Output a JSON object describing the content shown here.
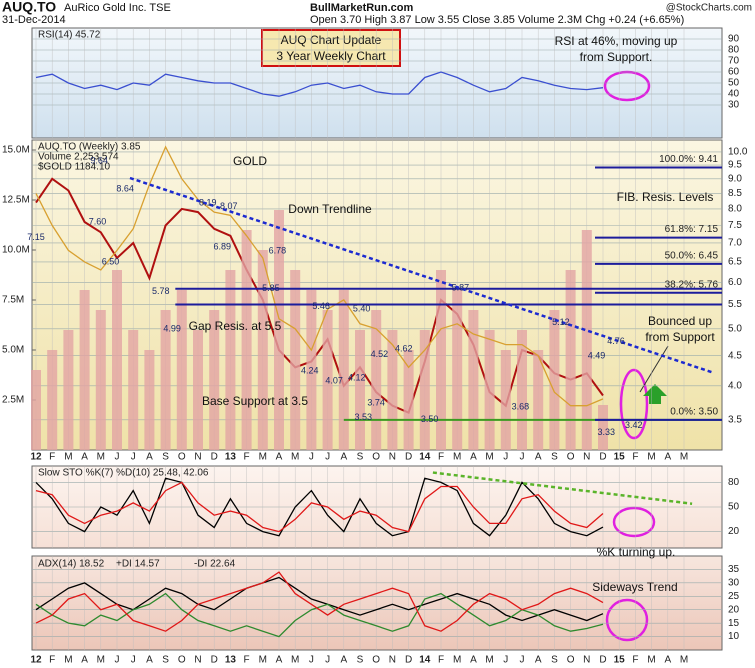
{
  "header": {
    "symbol": "AUQ.TO",
    "company": "AuRico Gold Inc. TSE",
    "date": "31-Dec-2014",
    "site": "BullMarketRun.com",
    "quote": "Open 3.70  High 3.87  Low 3.55  Close 3.85  Volume 2.3M  Chg +0.24 (+6.65%)",
    "credit": "@StockCharts.com",
    "box": [
      "AUQ Chart Update",
      "3 Year Weekly Chart"
    ]
  },
  "chart_data": [
    {
      "type": "line",
      "title": "RSI(14) 45.72",
      "categories": [
        "12",
        "F",
        "M",
        "A",
        "M",
        "J",
        "J",
        "A",
        "S",
        "O",
        "N",
        "D",
        "13",
        "F",
        "M",
        "A",
        "M",
        "J",
        "J",
        "A",
        "S",
        "O",
        "N",
        "D",
        "14",
        "F",
        "M",
        "A",
        "M",
        "J",
        "J",
        "A",
        "S",
        "O",
        "N",
        "D",
        "15",
        "F",
        "M",
        "A",
        "M"
      ],
      "ylim": [
        0,
        100
      ],
      "yticks": [
        30,
        40,
        50,
        60,
        70,
        80,
        90
      ],
      "grid": true,
      "series": [
        {
          "color": "#3a4fd0",
          "values": [
            55,
            58,
            50,
            45,
            48,
            44,
            50,
            48,
            58,
            55,
            52,
            50,
            50,
            45,
            40,
            38,
            42,
            48,
            50,
            45,
            48,
            42,
            40,
            40,
            55,
            60,
            55,
            48,
            42,
            45,
            55,
            52,
            48,
            45,
            44,
            45.72,
            null,
            null,
            null,
            null,
            null
          ]
        }
      ],
      "annotations": [
        "RSI at 46%, moving up",
        "from Support."
      ]
    },
    {
      "type": "line",
      "log_scale": true,
      "ylim": [
        3.11,
        10.48
      ],
      "yticks": [
        3.5,
        {
          "value": 4,
          "label": "4.0"
        },
        4.5,
        {
          "value": 5,
          "label": "5.0"
        },
        5.5,
        {
          "value": 6,
          "label": "6.0"
        },
        6.5,
        {
          "value": 7,
          "label": "7.0"
        },
        7.5,
        {
          "value": 8,
          "label": "8.0"
        },
        8.5,
        {
          "value": 9,
          "label": "9.0"
        },
        9.5,
        {
          "value": 10,
          "label": "10.0"
        }
      ],
      "grid": true,
      "y2lim": [
        0,
        15.5
      ],
      "y2ticks": [
        {
          "value": 2.5,
          "label": "2.5M"
        },
        {
          "value": 5,
          "label": "5.0M"
        },
        {
          "value": 7.5,
          "label": "7.5M"
        },
        {
          "value": 10,
          "label": "10.0M"
        },
        {
          "value": 12.5,
          "label": "12.5M"
        },
        {
          "value": 15,
          "label": "15.0M"
        }
      ],
      "series": [
        {
          "name": "AUQ.TO (Weekly) 3.85",
          "color": "#b01010",
          "values": [
            8.2,
            9.0,
            8.6,
            7.6,
            7.3,
            6.6,
            7.0,
            6.1,
            7.5,
            8.0,
            7.9,
            7.4,
            7.2,
            6.3,
            5.6,
            4.6,
            4.3,
            4.4,
            4.8,
            4.0,
            4.3,
            3.9,
            3.7,
            3.6,
            4.4,
            5.6,
            5.3,
            4.7,
            3.9,
            3.7,
            4.6,
            4.5,
            4.2,
            4.1,
            4.2,
            3.85,
            null,
            null,
            null,
            null,
            null
          ]
        },
        {
          "name": "Volume 2,253,574",
          "color": "#e2a4a4",
          "axis": "y2",
          "values": [
            4,
            5,
            6,
            8,
            7,
            9,
            6,
            5,
            7,
            8,
            6,
            7,
            9,
            11,
            10,
            12,
            9,
            8,
            7,
            8,
            6,
            7,
            6,
            5,
            6,
            9,
            8,
            7,
            6,
            5,
            6,
            5,
            7,
            9,
            11,
            2.25,
            null,
            null,
            null,
            null,
            null
          ]
        },
        {
          "name": "$GOLD 1184.10",
          "color": "#d8a030",
          "values": [
            8.5,
            7.5,
            6.8,
            6.5,
            6.3,
            6.8,
            7.4,
            8.8,
            10.2,
            9.0,
            8.3,
            7.9,
            7.8,
            7.2,
            6.6,
            5.2,
            5.0,
            4.6,
            5.4,
            5.6,
            5.1,
            5.0,
            4.7,
            4.3,
            4.6,
            5.0,
            5.1,
            4.9,
            4.8,
            4.7,
            4.7,
            4.5,
            3.9,
            3.7,
            3.7,
            3.8,
            null,
            null,
            null,
            null,
            null
          ]
        }
      ],
      "price_labels": [
        {
          "x": 0,
          "value": 7.15
        },
        {
          "x": 3.9,
          "value": 9.64
        },
        {
          "x": 5.5,
          "value": 8.64
        },
        {
          "x": 3.8,
          "value": 7.6,
          "label": "7.60"
        },
        {
          "x": 4.6,
          "value": 6.5,
          "label": "6.50"
        },
        {
          "x": 10.6,
          "value": 8.19
        },
        {
          "x": 11.9,
          "value": 8.07
        },
        {
          "x": 11.5,
          "value": 6.89
        },
        {
          "x": 14.9,
          "value": 6.78
        },
        {
          "x": 7.7,
          "value": 5.78
        },
        {
          "x": 8.4,
          "value": 4.99
        },
        {
          "x": 14.5,
          "value": 5.85
        },
        {
          "x": 17.6,
          "value": 5.46
        },
        {
          "x": 20.1,
          "value": 5.4,
          "label": "5.40"
        },
        {
          "x": 16.9,
          "value": 4.24
        },
        {
          "x": 18.4,
          "value": 4.07
        },
        {
          "x": 21.2,
          "value": 4.52
        },
        {
          "x": 19.8,
          "value": 4.12
        },
        {
          "x": 22.7,
          "value": 4.62
        },
        {
          "x": 21,
          "value": 3.74
        },
        {
          "x": 20.2,
          "value": 3.53
        },
        {
          "x": 24.3,
          "value": 3.5,
          "label": "3.50"
        },
        {
          "x": 26.2,
          "value": 5.87
        },
        {
          "x": 29.9,
          "value": 3.68
        },
        {
          "x": 32.4,
          "value": 5.12
        },
        {
          "x": 34.6,
          "value": 4.49
        },
        {
          "x": 35.8,
          "value": 4.76
        },
        {
          "x": 35.2,
          "value": 3.33
        },
        {
          "x": 36.9,
          "value": 3.42
        }
      ],
      "fib_levels": [
        {
          "value": 9.41,
          "label": "100.0%: 9.41"
        },
        {
          "value": 7.15,
          "label": "61.8%: 7.15"
        },
        {
          "value": 6.45,
          "label": "50.0%: 6.45"
        },
        {
          "value": 5.76,
          "label": "38.2%: 5.76"
        },
        {
          "value": 3.5,
          "label": "0.0%: 3.50"
        }
      ],
      "hlines": [
        {
          "value": 5.85,
          "start": 8.6,
          "color": "#1c1c9c"
        },
        {
          "value": 5.5,
          "start": 8.6,
          "color": "#1c1c9c"
        },
        {
          "value": 3.5,
          "start": 19,
          "color": "#3a9a20"
        }
      ],
      "trendline": [
        {
          "x": 5.8,
          "value": 9.03
        },
        {
          "x": 41.7,
          "value": 4.22
        }
      ],
      "annotations": [
        "GOLD",
        "Down Trendline",
        "FIB. Resis. Levels",
        "Gap Resis. at 5.5",
        "Base Support at 3.5",
        "Bounced up",
        "from Support"
      ]
    },
    {
      "type": "line",
      "title": "Slow STO %K(7) %D(10) 25.48, 42.06",
      "ylim": [
        0,
        100
      ],
      "yticks": [
        20,
        50,
        80
      ],
      "grid": true,
      "series": [
        {
          "color": "#000000",
          "values": [
            80,
            60,
            30,
            20,
            50,
            40,
            70,
            30,
            85,
            80,
            40,
            25,
            60,
            30,
            20,
            15,
            50,
            70,
            40,
            20,
            60,
            30,
            15,
            20,
            85,
            80,
            70,
            30,
            15,
            40,
            80,
            60,
            30,
            20,
            15,
            25.48,
            null,
            null,
            null,
            null,
            null
          ]
        },
        {
          "color": "#e01818",
          "values": [
            70,
            65,
            40,
            30,
            40,
            45,
            55,
            45,
            70,
            80,
            55,
            40,
            45,
            40,
            25,
            20,
            35,
            55,
            50,
            35,
            45,
            40,
            25,
            20,
            60,
            75,
            75,
            50,
            30,
            30,
            60,
            65,
            45,
            30,
            25,
            42.06,
            null,
            null,
            null,
            null,
            null
          ]
        }
      ],
      "trendline": [
        {
          "x": 24.5,
          "value": 92
        },
        {
          "x": 40.5,
          "value": 54
        }
      ],
      "annotations": [
        "%K turning up."
      ]
    },
    {
      "type": "line",
      "ylim": [
        5,
        40
      ],
      "yticks": [
        10,
        15,
        20,
        25,
        30,
        35
      ],
      "grid": true,
      "series": [
        {
          "name": "ADX(14) 18.52",
          "color": "#000000",
          "values": [
            20,
            24,
            28,
            30,
            26,
            22,
            20,
            24,
            28,
            26,
            22,
            20,
            24,
            28,
            30,
            32,
            28,
            24,
            22,
            20,
            18,
            20,
            22,
            20,
            22,
            24,
            26,
            24,
            22,
            18,
            16,
            18,
            20,
            18,
            16,
            18.52,
            null,
            null,
            null,
            null,
            null
          ]
        },
        {
          "name": "+DI 14.57",
          "color": "#2e8a2e",
          "values": [
            22,
            18,
            15,
            14,
            18,
            16,
            20,
            22,
            26,
            20,
            16,
            14,
            12,
            14,
            12,
            10,
            16,
            20,
            22,
            18,
            16,
            14,
            12,
            14,
            24,
            26,
            22,
            18,
            14,
            16,
            20,
            18,
            14,
            12,
            13,
            14.57,
            null,
            null,
            null,
            null,
            null
          ]
        },
        {
          "name": "-DI 22.64",
          "color": "#e01818",
          "values": [
            15,
            18,
            24,
            26,
            20,
            22,
            16,
            14,
            12,
            16,
            22,
            24,
            26,
            28,
            30,
            34,
            26,
            22,
            18,
            22,
            24,
            26,
            28,
            26,
            14,
            12,
            16,
            22,
            26,
            24,
            20,
            22,
            26,
            28,
            26,
            22.64,
            null,
            null,
            null,
            null,
            null
          ]
        }
      ],
      "annotations": [
        "Sideways Trend"
      ]
    }
  ]
}
